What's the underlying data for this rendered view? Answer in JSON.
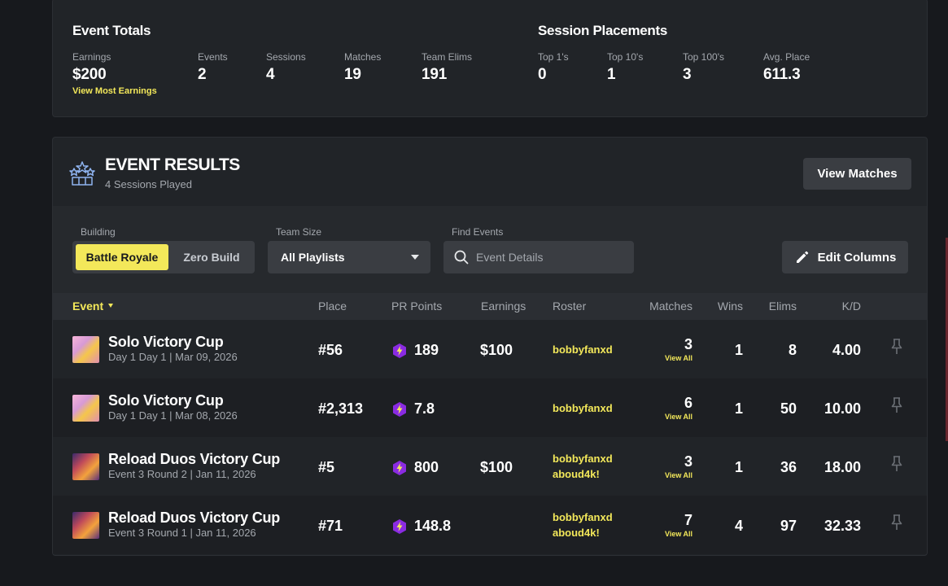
{
  "event_totals": {
    "title": "Event Totals",
    "stats": [
      {
        "label": "Earnings",
        "value": "$200",
        "link": "View Most Earnings"
      },
      {
        "label": "Events",
        "value": "2"
      },
      {
        "label": "Sessions",
        "value": "4"
      },
      {
        "label": "Matches",
        "value": "19"
      },
      {
        "label": "Team Elims",
        "value": "191"
      }
    ]
  },
  "session_placements": {
    "title": "Session Placements",
    "stats": [
      {
        "label": "Top 1's",
        "value": "0"
      },
      {
        "label": "Top 10's",
        "value": "1"
      },
      {
        "label": "Top 100's",
        "value": "3"
      },
      {
        "label": "Avg. Place",
        "value": "611.3"
      }
    ]
  },
  "event_results": {
    "title": "EVENT RESULTS",
    "subtitle": "4 Sessions Played",
    "view_matches_label": "View Matches"
  },
  "filters": {
    "building_label": "Building",
    "building_options": [
      "Battle Royale",
      "Zero Build"
    ],
    "team_size_label": "Team Size",
    "team_size_value": "All Playlists",
    "find_label": "Find Events",
    "find_placeholder": "Event Details",
    "edit_columns_label": "Edit Columns"
  },
  "table": {
    "columns": [
      "Event",
      "Place",
      "PR Points",
      "Earnings",
      "Roster",
      "Matches",
      "Wins",
      "Elims",
      "K/D"
    ],
    "view_all_label": "View All",
    "rows": [
      {
        "name": "Solo Victory Cup",
        "sub": "Day 1 Day 1 | Mar 09, 2026",
        "place": "#56",
        "pr": "189",
        "earnings": "$100",
        "roster": [
          "bobbyfanxd"
        ],
        "matches": "3",
        "wins": "1",
        "elims": "8",
        "kd": "4.00"
      },
      {
        "name": "Solo Victory Cup",
        "sub": "Day 1 Day 1 | Mar 08, 2026",
        "place": "#2,313",
        "pr": "7.8",
        "earnings": "",
        "roster": [
          "bobbyfanxd"
        ],
        "matches": "6",
        "wins": "1",
        "elims": "50",
        "kd": "10.00"
      },
      {
        "name": "Reload Duos Victory Cup",
        "sub": "Event 3 Round 2 | Jan 11, 2026",
        "place": "#5",
        "pr": "800",
        "earnings": "$100",
        "roster": [
          "bobbyfanxd",
          "aboud4k!"
        ],
        "matches": "3",
        "wins": "1",
        "elims": "36",
        "kd": "18.00"
      },
      {
        "name": "Reload Duos Victory Cup",
        "sub": "Event 3 Round 1 | Jan 11, 2026",
        "place": "#71",
        "pr": "148.8",
        "earnings": "",
        "roster": [
          "bobbyfanxd",
          "aboud4k!"
        ],
        "matches": "7",
        "wins": "4",
        "elims": "97",
        "kd": "32.33"
      }
    ]
  },
  "colors": {
    "accent": "#f3e85a",
    "pr_icon": "#8a2be2"
  }
}
